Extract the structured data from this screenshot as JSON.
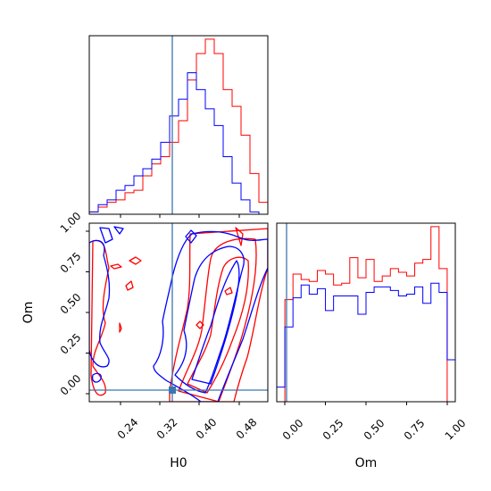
{
  "figure": {
    "x_axis_label": "H0",
    "y_axis_label": "Om",
    "om_axis_label": "Om"
  },
  "chart_data": [
    {
      "type": "histogram",
      "panel": "H0 marginal",
      "xlim": [
        0.2,
        0.55
      ],
      "bin_edges": [
        0.2,
        0.2175,
        0.235,
        0.2525,
        0.27,
        0.2875,
        0.305,
        0.3225,
        0.34,
        0.3575,
        0.375,
        0.3925,
        0.41,
        0.4275,
        0.445,
        0.4625,
        0.48,
        0.4975,
        0.515,
        0.5325,
        0.55
      ],
      "series": [
        {
          "color": "#ff0000",
          "values": [
            1,
            3,
            5,
            6,
            9,
            10,
            16,
            21,
            24,
            30,
            39,
            56,
            67,
            73,
            67,
            52,
            45,
            33,
            17,
            5
          ]
        },
        {
          "color": "#0000ff",
          "values": [
            1,
            4,
            6,
            10,
            12,
            16,
            19,
            23,
            30,
            41,
            48,
            59,
            52,
            44,
            37,
            24,
            13,
            6,
            1,
            0
          ]
        }
      ],
      "truth_line": 0.345,
      "line_color": "#3b76af"
    },
    {
      "type": "histogram",
      "panel": "Om marginal",
      "xlim": [
        -0.05,
        1.05
      ],
      "xticks": [
        "0.00",
        "0.25",
        "0.50",
        "0.75",
        "1.00"
      ],
      "bin_edges": [
        -0.05,
        0.0,
        0.05,
        0.1,
        0.15,
        0.2,
        0.25,
        0.3,
        0.35,
        0.4,
        0.45,
        0.5,
        0.55,
        0.6,
        0.65,
        0.7,
        0.75,
        0.8,
        0.85,
        0.9,
        0.95,
        1.0,
        1.05
      ],
      "series": [
        {
          "color": "#ff0000",
          "values": [
            0,
            56,
            70,
            67,
            66,
            72,
            70,
            64,
            65,
            79,
            68,
            78,
            66,
            69,
            73,
            71,
            69,
            76,
            78,
            96,
            73,
            0
          ]
        },
        {
          "color": "#0000ff",
          "values": [
            8,
            41,
            57,
            64,
            59,
            62,
            50,
            58,
            58,
            58,
            48,
            60,
            63,
            63,
            61,
            58,
            59,
            63,
            54,
            65,
            60,
            23
          ]
        }
      ],
      "truth_line": 0.02,
      "line_color": "#3b76af"
    },
    {
      "type": "contour",
      "panel": "Om vs H0",
      "x_label": "H0",
      "y_label": "Om",
      "xlim": [
        0.2,
        0.55
      ],
      "ylim": [
        -0.05,
        1.05
      ],
      "xticks": [
        "0.24",
        "0.32",
        "0.40",
        "0.48"
      ],
      "yticks": [
        "0.00",
        "0.25",
        "0.50",
        "0.75",
        "1.00"
      ],
      "series": [
        {
          "color": "#ff0000",
          "description": "contours of red sample, concentrated at H0 ~0.40-0.52"
        },
        {
          "color": "#0000ff",
          "description": "contours of blue sample, broader, H0 ~0.30-0.50"
        }
      ],
      "truth_point": {
        "H0": 0.345,
        "Om": 0.02
      },
      "line_color": "#3b76af"
    }
  ]
}
